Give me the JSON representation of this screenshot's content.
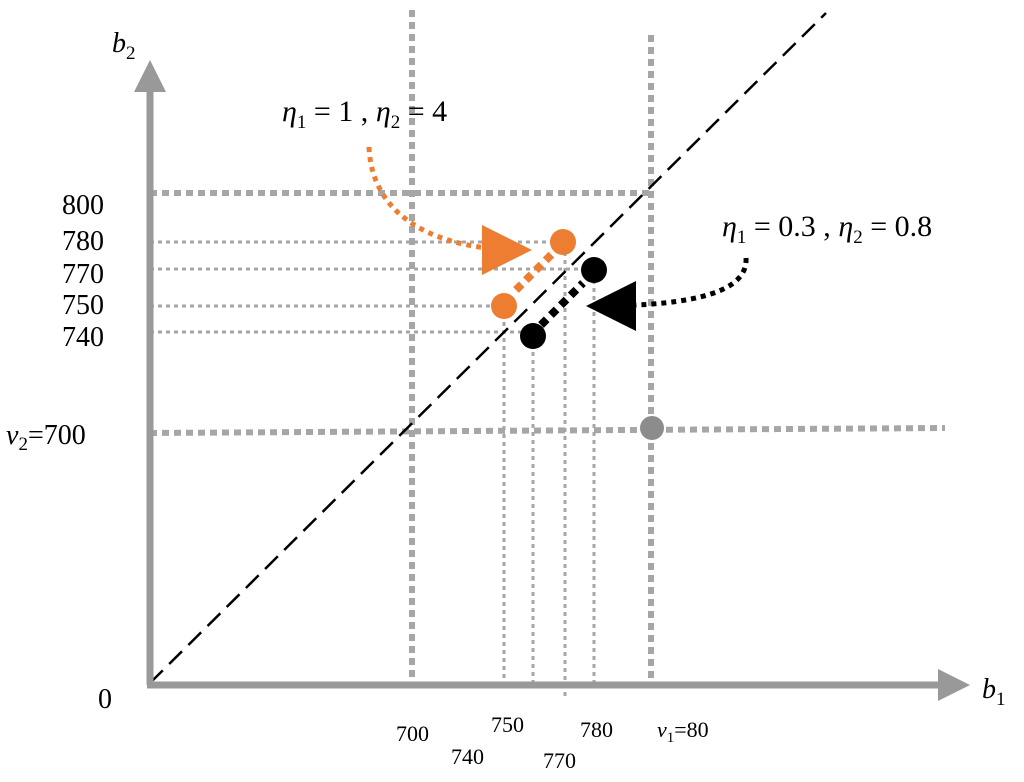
{
  "figure": {
    "y_axis": {
      "label_main": "b",
      "label_sub": "2"
    },
    "x_axis": {
      "label_main": "b",
      "label_sub": "1"
    },
    "origin_label": "0",
    "y_ticks": [
      "800",
      "780",
      "770",
      "750",
      "740"
    ],
    "v2_label": {
      "main": "v",
      "sub": "2",
      "rest": "=700"
    },
    "x_ticks": {
      "t700": "700",
      "t740": "740",
      "t750": "750",
      "t770": "770",
      "t780": "780"
    },
    "v1_label": {
      "main": "v",
      "sub": "1",
      "rest": "=80"
    },
    "annotation_orange": {
      "eta1": "η",
      "sub1": "1",
      "val1": " = 1 , ",
      "eta2": "η",
      "sub2": "2",
      "val2": " = 4"
    },
    "annotation_black": {
      "eta1": "η",
      "sub1": "1",
      "val1": " = 0.3 , ",
      "eta2": "η",
      "sub2": "2",
      "val2": " = 0.8"
    },
    "colors": {
      "axis": "#999999",
      "grid": "#a6a6a6",
      "orange": "#ed7d31",
      "black": "#000000",
      "gray_point": "#8c8c8c"
    }
  }
}
